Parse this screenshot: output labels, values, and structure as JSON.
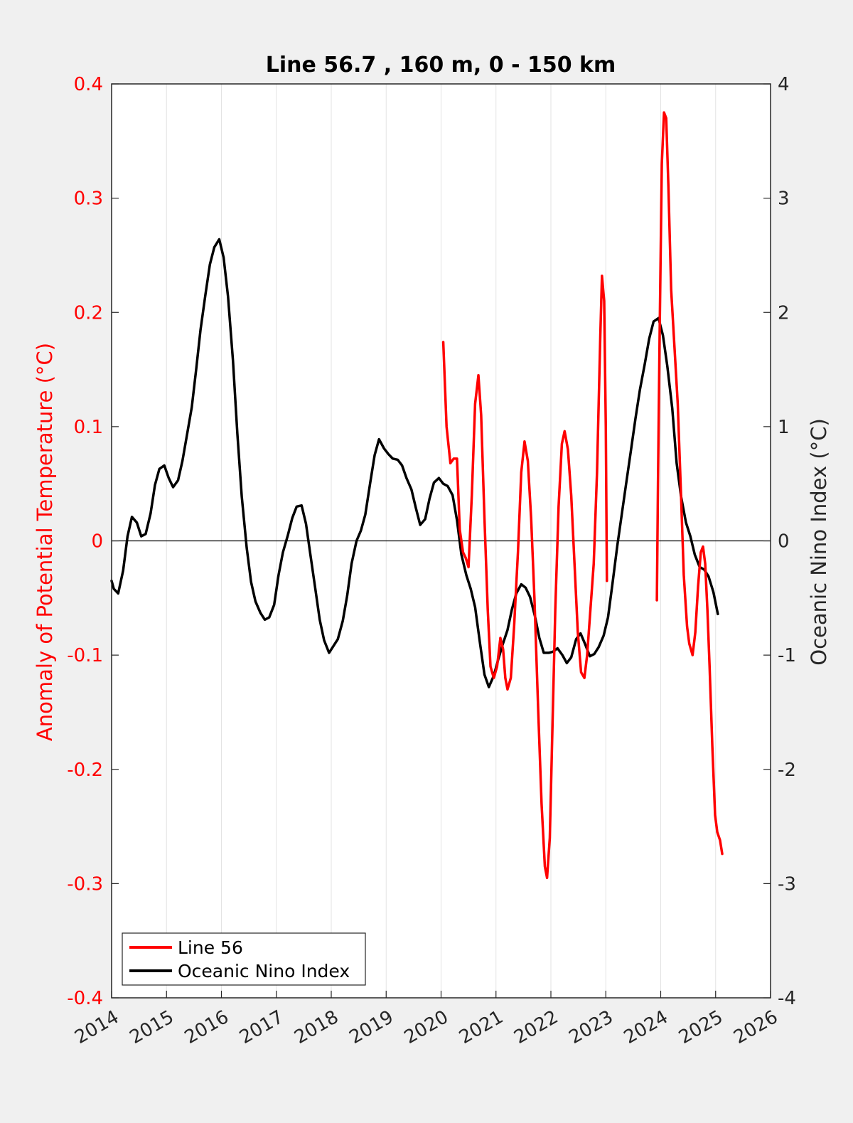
{
  "chart_data": {
    "type": "line",
    "title": "Line 56.7 , 160 m, 0 - 150 km",
    "xlim": [
      2014,
      2026
    ],
    "x_ticks": [
      "2014",
      "2015",
      "2016",
      "2017",
      "2018",
      "2019",
      "2020",
      "2021",
      "2022",
      "2023",
      "2024",
      "2025",
      "2026"
    ],
    "y_left": {
      "label": "Anomaly of Potential Temperature (°C)",
      "lim": [
        -0.4,
        0.4
      ],
      "ticks": [
        "-0.4",
        "-0.3",
        "-0.2",
        "-0.1",
        "0",
        "0.1",
        "0.2",
        "0.3",
        "0.4"
      ],
      "color": "#ff0000"
    },
    "y_right": {
      "label": "Oceanic Nino Index (°C)",
      "lim": [
        -4,
        4
      ],
      "ticks": [
        "-4",
        "-3",
        "-2",
        "-1",
        "0",
        "1",
        "2",
        "3",
        "4"
      ],
      "color": "#262626"
    },
    "grid": "x-only",
    "zero_line": true,
    "legend_position": "bottom-left",
    "series": [
      {
        "name": "Line 56",
        "axis": "left",
        "color": "#ff0000",
        "segments": [
          [
            [
              2020.04,
              0.174
            ],
            [
              2020.1,
              0.1
            ],
            [
              2020.17,
              0.068
            ],
            [
              2020.23,
              0.072
            ],
            [
              2020.29,
              0.072
            ],
            [
              2020.34,
              0.01
            ],
            [
              2020.4,
              -0.01
            ],
            [
              2020.45,
              -0.015
            ],
            [
              2020.5,
              -0.023
            ],
            [
              2020.56,
              0.04
            ],
            [
              2020.62,
              0.12
            ],
            [
              2020.68,
              0.145
            ],
            [
              2020.73,
              0.11
            ],
            [
              2020.79,
              0.02
            ],
            [
              2020.85,
              -0.06
            ],
            [
              2020.9,
              -0.11
            ],
            [
              2020.96,
              -0.12
            ],
            [
              2021.02,
              -0.11
            ],
            [
              2021.08,
              -0.085
            ],
            [
              2021.13,
              -0.095
            ],
            [
              2021.17,
              -0.12
            ],
            [
              2021.21,
              -0.13
            ],
            [
              2021.27,
              -0.12
            ],
            [
              2021.33,
              -0.075
            ],
            [
              2021.4,
              -0.01
            ],
            [
              2021.46,
              0.06
            ],
            [
              2021.52,
              0.087
            ],
            [
              2021.58,
              0.07
            ],
            [
              2021.64,
              0.02
            ],
            [
              2021.7,
              -0.05
            ],
            [
              2021.77,
              -0.15
            ],
            [
              2021.83,
              -0.23
            ],
            [
              2021.89,
              -0.285
            ],
            [
              2021.93,
              -0.295
            ],
            [
              2021.98,
              -0.26
            ],
            [
              2022.02,
              -0.18
            ],
            [
              2022.08,
              -0.06
            ],
            [
              2022.14,
              0.03
            ],
            [
              2022.2,
              0.085
            ],
            [
              2022.25,
              0.096
            ],
            [
              2022.31,
              0.08
            ],
            [
              2022.37,
              0.04
            ],
            [
              2022.43,
              -0.02
            ],
            [
              2022.49,
              -0.08
            ],
            [
              2022.55,
              -0.115
            ],
            [
              2022.61,
              -0.12
            ],
            [
              2022.66,
              -0.1
            ],
            [
              2022.72,
              -0.06
            ],
            [
              2022.78,
              -0.02
            ],
            [
              2022.84,
              0.06
            ],
            [
              2022.9,
              0.18
            ],
            [
              2022.93,
              0.232
            ],
            [
              2022.97,
              0.21
            ],
            [
              2023.0,
              0.1
            ],
            [
              2023.02,
              -0.035
            ]
          ],
          [
            [
              2023.93,
              -0.052
            ],
            [
              2023.95,
              0.05
            ],
            [
              2023.98,
              0.18
            ],
            [
              2024.02,
              0.33
            ],
            [
              2024.06,
              0.375
            ],
            [
              2024.1,
              0.37
            ],
            [
              2024.14,
              0.31
            ],
            [
              2024.19,
              0.22
            ],
            [
              2024.25,
              0.17
            ],
            [
              2024.31,
              0.12
            ],
            [
              2024.37,
              0.04
            ],
            [
              2024.42,
              -0.03
            ],
            [
              2024.48,
              -0.075
            ],
            [
              2024.52,
              -0.09
            ],
            [
              2024.58,
              -0.1
            ],
            [
              2024.63,
              -0.08
            ],
            [
              2024.68,
              -0.04
            ],
            [
              2024.73,
              -0.01
            ],
            [
              2024.77,
              -0.005
            ],
            [
              2024.81,
              -0.02
            ],
            [
              2024.85,
              -0.06
            ],
            [
              2024.89,
              -0.11
            ],
            [
              2024.94,
              -0.18
            ],
            [
              2024.99,
              -0.24
            ],
            [
              2025.03,
              -0.255
            ],
            [
              2025.08,
              -0.262
            ],
            [
              2025.12,
              -0.274
            ]
          ]
        ]
      },
      {
        "name": "Oceanic Nino Index",
        "axis": "right",
        "color": "#000000",
        "segments": [
          [
            [
              2014.0,
              -0.35
            ],
            [
              2014.04,
              -0.42
            ],
            [
              2014.12,
              -0.46
            ],
            [
              2014.21,
              -0.26
            ],
            [
              2014.29,
              0.04
            ],
            [
              2014.37,
              0.21
            ],
            [
              2014.46,
              0.16
            ],
            [
              2014.54,
              0.04
            ],
            [
              2014.62,
              0.06
            ],
            [
              2014.71,
              0.24
            ],
            [
              2014.79,
              0.49
            ],
            [
              2014.87,
              0.63
            ],
            [
              2014.96,
              0.66
            ],
            [
              2015.04,
              0.55
            ],
            [
              2015.12,
              0.47
            ],
            [
              2015.21,
              0.53
            ],
            [
              2015.29,
              0.7
            ],
            [
              2015.37,
              0.92
            ],
            [
              2015.46,
              1.17
            ],
            [
              2015.54,
              1.5
            ],
            [
              2015.62,
              1.85
            ],
            [
              2015.71,
              2.16
            ],
            [
              2015.79,
              2.42
            ],
            [
              2015.87,
              2.57
            ],
            [
              2015.96,
              2.64
            ],
            [
              2016.04,
              2.48
            ],
            [
              2016.12,
              2.14
            ],
            [
              2016.21,
              1.58
            ],
            [
              2016.29,
              0.94
            ],
            [
              2016.37,
              0.39
            ],
            [
              2016.46,
              -0.06
            ],
            [
              2016.54,
              -0.36
            ],
            [
              2016.62,
              -0.53
            ],
            [
              2016.71,
              -0.63
            ],
            [
              2016.79,
              -0.69
            ],
            [
              2016.87,
              -0.67
            ],
            [
              2016.96,
              -0.56
            ],
            [
              2017.04,
              -0.3
            ],
            [
              2017.12,
              -0.1
            ],
            [
              2017.21,
              0.05
            ],
            [
              2017.29,
              0.2
            ],
            [
              2017.37,
              0.3
            ],
            [
              2017.46,
              0.31
            ],
            [
              2017.54,
              0.15
            ],
            [
              2017.62,
              -0.12
            ],
            [
              2017.71,
              -0.42
            ],
            [
              2017.79,
              -0.69
            ],
            [
              2017.87,
              -0.87
            ],
            [
              2017.96,
              -0.98
            ],
            [
              2018.04,
              -0.92
            ],
            [
              2018.12,
              -0.86
            ],
            [
              2018.21,
              -0.7
            ],
            [
              2018.29,
              -0.48
            ],
            [
              2018.37,
              -0.2
            ],
            [
              2018.46,
              0.0
            ],
            [
              2018.54,
              0.09
            ],
            [
              2018.62,
              0.23
            ],
            [
              2018.71,
              0.51
            ],
            [
              2018.79,
              0.75
            ],
            [
              2018.87,
              0.89
            ],
            [
              2018.96,
              0.81
            ],
            [
              2019.04,
              0.76
            ],
            [
              2019.12,
              0.72
            ],
            [
              2019.21,
              0.71
            ],
            [
              2019.29,
              0.66
            ],
            [
              2019.37,
              0.55
            ],
            [
              2019.46,
              0.45
            ],
            [
              2019.54,
              0.29
            ],
            [
              2019.62,
              0.14
            ],
            [
              2019.71,
              0.19
            ],
            [
              2019.79,
              0.37
            ],
            [
              2019.87,
              0.51
            ],
            [
              2019.96,
              0.55
            ],
            [
              2020.04,
              0.5
            ],
            [
              2020.12,
              0.48
            ],
            [
              2020.21,
              0.4
            ],
            [
              2020.29,
              0.18
            ],
            [
              2020.37,
              -0.12
            ],
            [
              2020.46,
              -0.3
            ],
            [
              2020.54,
              -0.42
            ],
            [
              2020.62,
              -0.58
            ],
            [
              2020.71,
              -0.9
            ],
            [
              2020.79,
              -1.17
            ],
            [
              2020.87,
              -1.28
            ],
            [
              2020.96,
              -1.18
            ],
            [
              2021.04,
              -1.04
            ],
            [
              2021.12,
              -0.91
            ],
            [
              2021.21,
              -0.78
            ],
            [
              2021.29,
              -0.6
            ],
            [
              2021.37,
              -0.46
            ],
            [
              2021.46,
              -0.38
            ],
            [
              2021.54,
              -0.41
            ],
            [
              2021.62,
              -0.49
            ],
            [
              2021.71,
              -0.66
            ],
            [
              2021.79,
              -0.85
            ],
            [
              2021.87,
              -0.98
            ],
            [
              2021.96,
              -0.98
            ],
            [
              2022.04,
              -0.97
            ],
            [
              2022.12,
              -0.94
            ],
            [
              2022.21,
              -1.0
            ],
            [
              2022.29,
              -1.07
            ],
            [
              2022.37,
              -1.02
            ],
            [
              2022.46,
              -0.86
            ],
            [
              2022.54,
              -0.81
            ],
            [
              2022.62,
              -0.9
            ],
            [
              2022.71,
              -1.01
            ],
            [
              2022.79,
              -0.99
            ],
            [
              2022.87,
              -0.93
            ],
            [
              2022.96,
              -0.83
            ],
            [
              2023.04,
              -0.67
            ],
            [
              2023.12,
              -0.38
            ],
            [
              2023.21,
              -0.04
            ],
            [
              2023.29,
              0.23
            ],
            [
              2023.37,
              0.5
            ],
            [
              2023.46,
              0.8
            ],
            [
              2023.54,
              1.07
            ],
            [
              2023.62,
              1.32
            ],
            [
              2023.71,
              1.55
            ],
            [
              2023.79,
              1.77
            ],
            [
              2023.87,
              1.92
            ],
            [
              2023.96,
              1.95
            ],
            [
              2024.04,
              1.8
            ],
            [
              2024.12,
              1.53
            ],
            [
              2024.21,
              1.16
            ],
            [
              2024.29,
              0.68
            ],
            [
              2024.37,
              0.39
            ],
            [
              2024.46,
              0.16
            ],
            [
              2024.54,
              0.04
            ],
            [
              2024.62,
              -0.12
            ],
            [
              2024.71,
              -0.23
            ],
            [
              2024.79,
              -0.25
            ],
            [
              2024.87,
              -0.31
            ],
            [
              2024.96,
              -0.45
            ],
            [
              2025.04,
              -0.64
            ]
          ]
        ]
      }
    ]
  }
}
